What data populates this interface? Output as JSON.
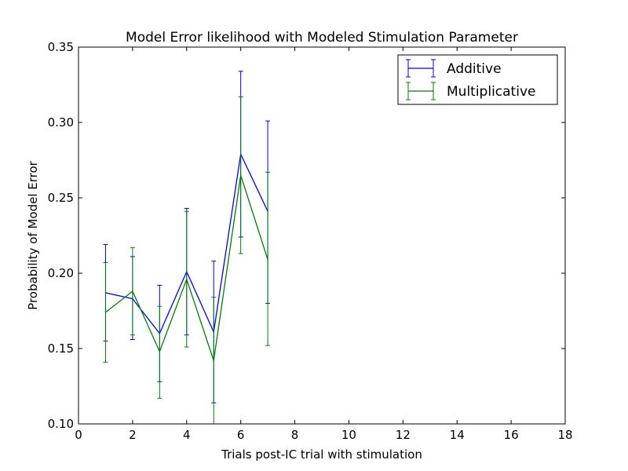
{
  "chart_data": {
    "type": "line",
    "title": "Model Error likelihood with Modeled Stimulation Parameter",
    "xlabel": "Trials post-IC trial with stimulation",
    "ylabel": "Probability of Model Error",
    "xlim": [
      0,
      18
    ],
    "ylim": [
      0.1,
      0.35
    ],
    "xticks": [
      "0",
      "2",
      "4",
      "6",
      "8",
      "10",
      "12",
      "14",
      "16",
      "18"
    ],
    "yticks": [
      "0.10",
      "0.15",
      "0.20",
      "0.25",
      "0.30",
      "0.35"
    ],
    "grid": false,
    "legend_position": "top-right",
    "x": [
      1,
      2,
      3,
      4,
      5,
      6,
      7
    ],
    "series": [
      {
        "name": "Additive",
        "color": "#0000ff",
        "values": [
          0.187,
          0.183,
          0.16,
          0.201,
          0.161,
          0.279,
          0.241
        ],
        "err_low": [
          0.155,
          0.156,
          0.128,
          0.159,
          0.114,
          0.224,
          0.18
        ],
        "err_high": [
          0.219,
          0.211,
          0.192,
          0.243,
          0.208,
          0.334,
          0.301
        ]
      },
      {
        "name": "Multiplicative",
        "color": "#008000",
        "values": [
          0.174,
          0.188,
          0.148,
          0.196,
          0.142,
          0.265,
          0.209
        ],
        "err_low": [
          0.141,
          0.159,
          0.117,
          0.151,
          0.099,
          0.213,
          0.152
        ],
        "err_high": [
          0.207,
          0.217,
          0.178,
          0.241,
          0.184,
          0.317,
          0.267
        ]
      }
    ]
  }
}
